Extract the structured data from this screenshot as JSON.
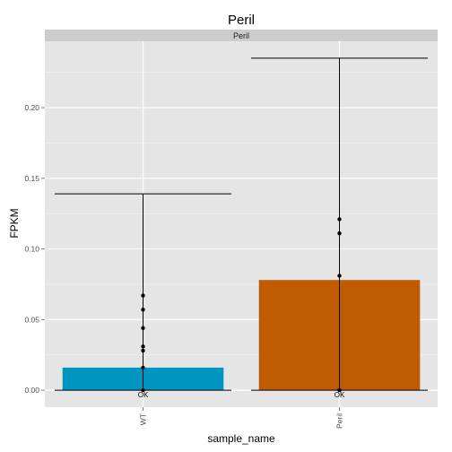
{
  "chart_data": {
    "type": "bar",
    "title": "Peril",
    "facet_label": "Peril",
    "xlabel": "sample_name",
    "ylabel": "FPKM",
    "categories": [
      "WT",
      "Peril"
    ],
    "values": [
      0.016,
      0.078
    ],
    "error_bars": [
      {
        "low": 0.0,
        "high": 0.139
      },
      {
        "low": 0.0,
        "high": 0.235
      }
    ],
    "points": [
      [
        0.067,
        0.057,
        0.044,
        0.031,
        0.028,
        0.016,
        0.0
      ],
      [
        0.121,
        0.111,
        0.081,
        0.0
      ]
    ],
    "status_labels": [
      "OK",
      "OK"
    ],
    "colors": [
      "#0094c0",
      "#bf5b00"
    ],
    "ylim": [
      -0.012,
      0.247
    ],
    "yticks": [
      0.0,
      0.05,
      0.1,
      0.15,
      0.2
    ],
    "ytick_labels": [
      "0.00",
      "0.05",
      "0.10",
      "0.15",
      "0.20"
    ],
    "grid": true,
    "legend": "none"
  }
}
